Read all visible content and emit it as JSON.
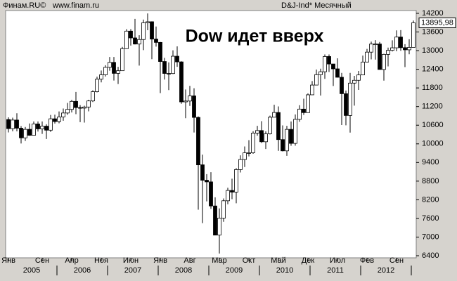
{
  "chart_data": {
    "type": "candlestick",
    "title": "Dow идет вверх",
    "source": "Финам.RU©",
    "site": "www.finam.ru",
    "instrument": "D&J-Ind* Месячный",
    "categories": [
      "Янв",
      null,
      null,
      null,
      null,
      null,
      null,
      null,
      "Сен",
      null,
      null,
      null,
      null,
      null,
      null,
      "Апр",
      null,
      null,
      null,
      null,
      null,
      null,
      "Ноя",
      null,
      null,
      null,
      null,
      null,
      null,
      "Июн",
      null,
      null,
      null,
      null,
      null,
      null,
      "Янв",
      null,
      null,
      null,
      null,
      null,
      null,
      "Авг",
      null,
      null,
      null,
      null,
      null,
      null,
      "Мар",
      null,
      null,
      null,
      null,
      null,
      null,
      "Окт",
      null,
      null,
      null,
      null,
      null,
      null,
      "Май",
      null,
      null,
      null,
      null,
      null,
      null,
      "Дек",
      null,
      null,
      null,
      null,
      null,
      null,
      "Июл",
      null,
      null,
      null,
      null,
      null,
      null,
      "Фев",
      null,
      null,
      null,
      null,
      null,
      null,
      "Сен",
      null,
      null,
      null,
      null
    ],
    "years": [
      "2005",
      "2006",
      "2007",
      "2008",
      "2009",
      "2010",
      "2011",
      "2012"
    ],
    "open": [
      10783,
      10490,
      10766,
      10504,
      10193,
      10467,
      10275,
      10641,
      10482,
      10569,
      10440,
      10806,
      10718,
      10865,
      10993,
      11109,
      11367,
      11168,
      11150,
      11186,
      11381,
      11679,
      12081,
      12222,
      12463,
      12622,
      12269,
      12354,
      13063,
      13628,
      13409,
      13212,
      13358,
      13896,
      13930,
      13372,
      13265,
      12650,
      12266,
      12263,
      12820,
      12638,
      11350,
      11378,
      11544,
      10851,
      9325,
      8829,
      8776,
      8001,
      7063,
      7609,
      8168,
      8500,
      8447,
      9172,
      9496,
      9712,
      9713,
      10345,
      10428,
      10067,
      10325,
      10857,
      11009,
      10137,
      9774,
      10466,
      10015,
      10788,
      11118,
      11006,
      11578,
      11892,
      12226,
      12320,
      12811,
      12570,
      12414,
      12143,
      11614,
      10913,
      11955,
      12046,
      12218,
      12633,
      12952,
      13212,
      13214,
      12393,
      12880,
      13009,
      13091,
      13437,
      13096,
      13026,
      13104
    ],
    "high": [
      10855,
      10842,
      10985,
      10570,
      10542,
      10656,
      10720,
      10720,
      10720,
      10632,
      10931,
      10940,
      11043,
      11137,
      11317,
      11416,
      11670,
      11247,
      11228,
      11420,
      11725,
      12163,
      12361,
      12529,
      12796,
      12795,
      12480,
      13120,
      13692,
      13692,
      14021,
      13497,
      14000,
      14198,
      13943,
      13775,
      13279,
      12767,
      12622,
      13010,
      13136,
      12658,
      11750,
      11867,
      11790,
      10882,
      9654,
      9026,
      9088,
      8280,
      7924,
      8242,
      8588,
      8878,
      9219,
      9630,
      9917,
      10119,
      10406,
      10580,
      10729,
      10403,
      10908,
      11258,
      11205,
      10594,
      10581,
      10720,
      10948,
      11245,
      11452,
      11625,
      12020,
      12391,
      12419,
      12876,
      12876,
      12570,
      12753,
      12284,
      11717,
      12284,
      12188,
      12345,
      12841,
      13055,
      13289,
      13338,
      13280,
      12899,
      13098,
      13331,
      13653,
      13661,
      13208,
      13365,
      13969
    ],
    "low": [
      10368,
      10404,
      10403,
      10012,
      10094,
      10260,
      10270,
      10397,
      10319,
      10156,
      10386,
      10654,
      10662,
      10745,
      10936,
      11008,
      10955,
      10698,
      10683,
      11046,
      11347,
      11656,
      11980,
      12167,
      12355,
      12038,
      11926,
      12354,
      13055,
      13163,
      13199,
      12518,
      13016,
      13657,
      12724,
      13130,
      11635,
      12068,
      11731,
      12248,
      12478,
      11288,
      10827,
      11221,
      10365,
      7882,
      7449,
      8149,
      7909,
      7066,
      6470,
      7491,
      8057,
      8221,
      8087,
      9078,
      9253,
      9597,
      9679,
      10263,
      10030,
      9835,
      10302,
      10857,
      9774,
      9757,
      9614,
      9937,
      9941,
      10711,
      10930,
      11006,
      11573,
      11892,
      11555,
      12093,
      12311,
      11862,
      12133,
      10604,
      10598,
      10362,
      11231,
      11735,
      12218,
      12625,
      12718,
      12710,
      12391,
      12035,
      12492,
      12973,
      12979,
      12993,
      12471,
      12883,
      13104
    ],
    "close": [
      10490,
      10766,
      10504,
      10193,
      10467,
      10275,
      10641,
      10482,
      10569,
      10440,
      10806,
      10718,
      10865,
      10993,
      11109,
      11367,
      11168,
      11150,
      11186,
      11381,
      11679,
      12081,
      12222,
      12463,
      12622,
      12269,
      12354,
      13063,
      13628,
      13409,
      13212,
      13358,
      13896,
      13930,
      13372,
      13265,
      12650,
      12266,
      12263,
      12820,
      12638,
      11350,
      11378,
      11544,
      10851,
      9325,
      8829,
      8776,
      8001,
      7063,
      7609,
      8168,
      8500,
      8447,
      9172,
      9496,
      9712,
      9713,
      10345,
      10428,
      10067,
      10325,
      10857,
      11009,
      10137,
      9774,
      10466,
      10015,
      10788,
      11118,
      11006,
      11578,
      11892,
      12226,
      12320,
      12811,
      12570,
      12414,
      12143,
      11614,
      10913,
      11955,
      12046,
      12218,
      12633,
      12952,
      13212,
      13214,
      12393,
      12880,
      13009,
      13091,
      13437,
      13096,
      13026,
      13104,
      13895.98
    ],
    "last_price": {
      "value": 13895.98,
      "label": "13895,98"
    },
    "ylim": [
      6400,
      14200
    ],
    "yticks": [
      6400,
      7000,
      7600,
      8200,
      8800,
      9400,
      10000,
      10600,
      11200,
      11800,
      12400,
      13000,
      13600,
      14200
    ],
    "up_color": "#ffffff",
    "down_color": "#000000",
    "title_color": "#f07820"
  }
}
